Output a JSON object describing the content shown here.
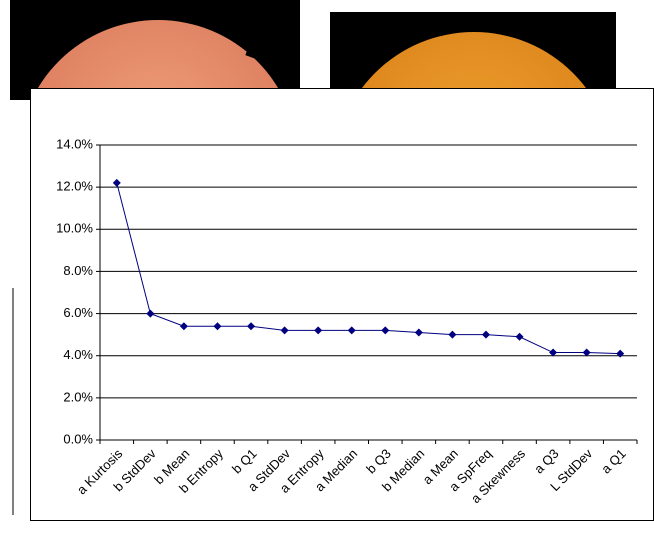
{
  "chart_data": {
    "type": "line",
    "categories": [
      "a Kurtosis",
      "b StdDev",
      "b Mean",
      "b Entropy",
      "b Q1",
      "a StdDev",
      "a Entropy",
      "a Median",
      "b Q3",
      "b Median",
      "a Mean",
      "a SpFreq",
      "a Skewness",
      "a Q3",
      "L StdDev",
      "a Q1"
    ],
    "values": [
      12.2,
      6.0,
      5.4,
      5.4,
      5.4,
      5.2,
      5.2,
      5.2,
      5.2,
      5.1,
      5.0,
      5.0,
      4.9,
      4.15,
      4.15,
      4.1
    ],
    "color": "#000080",
    "ylim": [
      0,
      14
    ],
    "yticks": [
      {
        "value": 0,
        "label": "0.0%"
      },
      {
        "value": 2,
        "label": "2.0%"
      },
      {
        "value": 4,
        "label": "4.0%"
      },
      {
        "value": 6,
        "label": "6.0%"
      },
      {
        "value": 8,
        "label": "8.0%"
      },
      {
        "value": 10,
        "label": "10.0%"
      },
      {
        "value": 12,
        "label": "12.0%"
      },
      {
        "value": 14,
        "label": "14.0%"
      }
    ],
    "grid": true
  }
}
